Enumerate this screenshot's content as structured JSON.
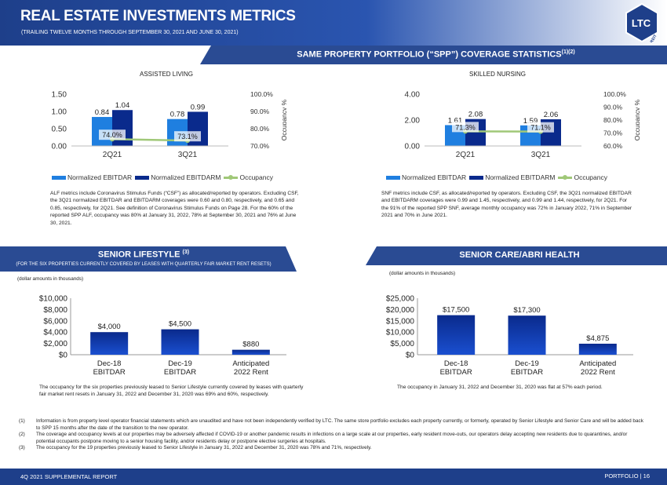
{
  "header": {
    "title": "REAL ESTATE INVESTMENTS METRICS",
    "subtitle": "(TRAILING TWELVE MONTHS THROUGH SEPTEMBER 30, 2021 AND JUNE 30, 2021)",
    "logo_text": "LTC",
    "logo_sub": "REIT"
  },
  "spp_banner": "SAME PROPERTY PORTFOLIO (“SPP”) COVERAGE STATISTICS",
  "spp_banner_sup": "(1)(2)",
  "colors": {
    "ebitdar": "#1f7fe0",
    "ebitdarm": "#0a2a8c",
    "occupancy": "#a0c878",
    "banner": "#2a4b93"
  },
  "chart_data": [
    {
      "type": "bar",
      "title": "ASSISTED LIVING",
      "categories": [
        "2Q21",
        "3Q21"
      ],
      "series": [
        {
          "name": "Normalized EBITDAR",
          "values": [
            0.84,
            0.78
          ]
        },
        {
          "name": "Normalized EBITDARM",
          "values": [
            1.04,
            0.99
          ]
        },
        {
          "name": "Occupancy",
          "values": [
            74.0,
            73.1
          ],
          "axis": "right",
          "type": "line"
        }
      ],
      "value_labels": [
        "0.84",
        "1.04",
        "0.78",
        "0.99"
      ],
      "occ_labels": [
        "74.0%",
        "73.1%"
      ],
      "ylim": [
        0,
        1.5
      ],
      "yticks": [
        "0.00",
        "0.50",
        "1.00",
        "1.50"
      ],
      "y2lim": [
        70,
        100
      ],
      "y2ticks": [
        "70.0%",
        "80.0%",
        "90.0%",
        "100.0%"
      ],
      "y2label": "Occupancy %",
      "legend": "bottom"
    },
    {
      "type": "bar",
      "title": "SKILLED NURSING",
      "categories": [
        "2Q21",
        "3Q21"
      ],
      "series": [
        {
          "name": "Normalized EBITDAR",
          "values": [
            1.61,
            1.59
          ]
        },
        {
          "name": "Normalized EBITDARM",
          "values": [
            2.08,
            2.06
          ]
        },
        {
          "name": "Occupancy",
          "values": [
            71.3,
            71.1
          ],
          "axis": "right",
          "type": "line"
        }
      ],
      "value_labels": [
        "1.61",
        "2.08",
        "1.59",
        "2.06"
      ],
      "occ_labels": [
        "71.3%",
        "71.1%"
      ],
      "ylim": [
        0,
        4
      ],
      "yticks": [
        "0.00",
        "2.00",
        "4.00"
      ],
      "y2lim": [
        60,
        100
      ],
      "y2ticks": [
        "60.0%",
        "70.0%",
        "80.0%",
        "90.0%",
        "100.0%"
      ],
      "y2label": "Occupancy %",
      "legend": "bottom"
    },
    {
      "type": "bar",
      "title": "",
      "categories": [
        "Dec-18 EBITDAR",
        "Dec-19 EBITDAR",
        "Anticipated 2022 Rent"
      ],
      "category_lines": [
        [
          "Dec-18",
          "EBITDAR"
        ],
        [
          "Dec-19",
          "EBITDAR"
        ],
        [
          "Anticipated",
          "2022 Rent"
        ]
      ],
      "values": [
        4000,
        4500,
        880
      ],
      "value_labels": [
        "$4,000",
        "$4,500",
        "$880"
      ],
      "ylim": [
        0,
        10000
      ],
      "yticks": [
        "$0",
        "$2,000",
        "$4,000",
        "$6,000",
        "$8,000",
        "$10,000"
      ]
    },
    {
      "type": "bar",
      "title": "",
      "categories": [
        "Dec-18 EBITDAR",
        "Dec-19 EBITDAR",
        "Anticipated 2022 Rent"
      ],
      "category_lines": [
        [
          "Dec-18",
          "EBITDAR"
        ],
        [
          "Dec-19",
          "EBITDAR"
        ],
        [
          "Anticipated",
          "2022 Rent"
        ]
      ],
      "values": [
        17500,
        17300,
        4875
      ],
      "value_labels": [
        "$17,500",
        "$17,300",
        "$4,875"
      ],
      "ylim": [
        0,
        25000
      ],
      "yticks": [
        "$0",
        "$5,000",
        "$10,000",
        "$15,000",
        "$20,000",
        "$25,000"
      ]
    }
  ],
  "legend": {
    "ebitdar": "Normalized EBITDAR",
    "ebitdarm": "Normalized EBITDARM",
    "occupancy": "Occupancy"
  },
  "notes": {
    "al": "ALF metrics include Coronavirus Stimulus Funds (“CSF”) as allocated/reported by operators. Excluding CSF, the 3Q21 normalized EBITDAR and EBITDARM coverages were 0.60 and 0.80, respectively, and 0.65 and 0.85, respectively, for 2Q21. See definition of Coronavirus Stimulus Funds on Page 28. For the 60% of the reported SPP ALF, occupancy was 80% at January 31, 2022, 78% at September 30, 2021 and 76% at June 30, 2021.",
    "snf": "SNF metrics include CSF, as allocated/reported by operators. Excluding CSF, the 3Q21 normalized EBITDAR and EBITDARM coverages were 0.99 and 1.45, respectively, and 0.99 and 1.44, respectively, for 2Q21. For the 91% of the reported SPP SNF, average monthly occupancy was 72% in January 2022, 71% in September 2021 and 70% in June 2021.",
    "lifestyle": "The occupancy for the six properties previously leased to Senior Lifestyle currently covered by leases with quarterly fair market rent resets in January 31, 2022 and December 31, 2020 was 69% and 60%, respectively.",
    "abri": "The occupancy in January 31, 2022 and December 31, 2020 was flat at 57% each period."
  },
  "senior_lifestyle": {
    "title": "SENIOR LIFESTYLE",
    "sup": "(3)",
    "subtitle": "(FOR THE SIX PROPERTIES CURRENTLY COVERED BY LEASES WITH QUARTERLY FAIR MARKET RENT RESETS)",
    "dollar_note": "(dollar amounts in thousands)"
  },
  "abri": {
    "title": "SENIOR CARE/ABRI HEALTH",
    "dollar_note": "(dollar amounts in thousands)"
  },
  "footnotes": [
    {
      "num": "(1)",
      "text": "Information is from property level operator financial statements which are unaudited and have not been independently verified by LTC. The same store portfolio excludes each property currently, or formerly, operated by Senior Lifestyle and Senior Care and will be added back to SPP 15 months after the date of the transition to the new operator."
    },
    {
      "num": "(2)",
      "text": "The coverage and occupancy levels at our properties may be adversely affected if COVID-19 or another pandemic results in infections on a large scale at our properties, early resident move-outs, our operators delay accepting new residents due to quarantines, and/or potential occupants postpone moving to a senior housing facility, and/or residents delay or postpone elective surgeries at hospitals."
    },
    {
      "num": "(3)",
      "text": "The occupancy for the 19 properties previously leased to Senior Lifestyle in January 31, 2022 and December 31, 2020 was 78% and 71%, respectively."
    }
  ],
  "footer": {
    "left": "4Q 2021 SUPPLEMENTAL REPORT",
    "right": "PORTFOLIO   |   16"
  }
}
